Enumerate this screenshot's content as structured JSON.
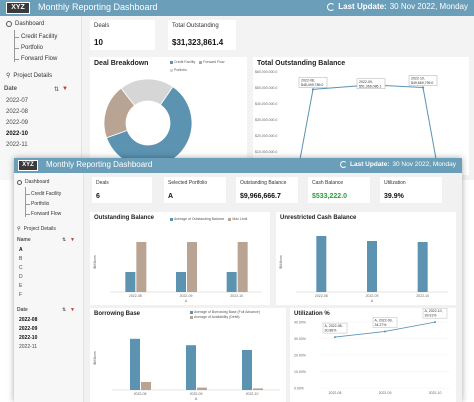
{
  "brand": {
    "logo_text": "XYZ",
    "header_color": "#6b9fb9"
  },
  "back_window": {
    "title": "Monthly Reporting Dashboard",
    "update_label": "Last Update:",
    "update_value": "30 Nov 2022, Monday",
    "nav": {
      "dashboard": "Dashboard",
      "items": [
        "Credit Facility",
        "Portfolio",
        "Forward Flow"
      ],
      "project_details": "Project Details"
    },
    "date_header": "Date",
    "dates": [
      "2022-07",
      "2022-08",
      "2022-09",
      "2022-10",
      "2022-11"
    ],
    "selected_date": "2022-10",
    "cards": {
      "deals_label": "Deals",
      "deals_value": "10",
      "outstanding_label": "Total Outstanding",
      "outstanding_value": "$31,323,861.4"
    },
    "deal_breakdown": {
      "title": "Deal Breakdown",
      "legend": [
        "Credit Facility",
        "Forward Flow",
        "Portfolio"
      ],
      "colors": [
        "#5b93b1",
        "#b9a493",
        "#d6d6d6"
      ]
    },
    "outstanding_balance": {
      "title": "Total Outstanding Balance",
      "y_ticks": [
        "$60,000,000.0",
        "$50,000,000.0",
        "$40,000,000.0",
        "$30,000,000.0",
        "$20,000,000.0",
        "$10,000,000.0"
      ],
      "callouts": [
        {
          "month": "2022-08,",
          "value": "$48,499,789.0"
        },
        {
          "month": "2022-09,",
          "value": "$51,366,086.1"
        },
        {
          "month": "2022-10,",
          "value": "$49,669,799.0"
        }
      ]
    }
  },
  "front_window": {
    "title": "Monthly Reporting Dashboard",
    "update_label": "Last Update:",
    "update_value": "30 Nov 2022, Monday",
    "nav": {
      "dashboard": "Dashboard",
      "items": [
        "Credit Facility",
        "Portfolio",
        "Forward Flow"
      ],
      "project_details": "Project Details"
    },
    "name_header": "Name",
    "names": [
      "A",
      "B",
      "C",
      "D",
      "E",
      "F"
    ],
    "selected_name": "A",
    "date_header": "Date",
    "dates": [
      "2022-08",
      "2022-09",
      "2022-10",
      "2022-11"
    ],
    "selected_dates": [
      "2022-08",
      "2022-09",
      "2022-10"
    ],
    "cards": [
      {
        "label": "Deals",
        "value": "6",
        "color": "#111111"
      },
      {
        "label": "Selected Portfolio",
        "value": "A",
        "color": "#111111"
      },
      {
        "label": "Outstanding Balance",
        "value": "$9,966,666.7",
        "color": "#111111"
      },
      {
        "label": "Cash Balance",
        "value": "$533,222.0",
        "color": "#2e9e3a"
      },
      {
        "label": "Utilization",
        "value": "39.9%",
        "color": "#111111"
      }
    ],
    "outstanding_panel": {
      "title": "Outstanding Balance",
      "legend": [
        "Average of Outstanding Balance",
        "Max Limit"
      ],
      "ylabel": "$Millions"
    },
    "cash_panel": {
      "title": "Unrestricted Cash Balance",
      "ylabel": "$Millions"
    },
    "borrowing_panel": {
      "title": "Borrowing Base",
      "legend": [
        "Average of Borrowing Base (Full Advance)",
        "Average of Availability (Debit)"
      ],
      "ylabel": "$Millions"
    },
    "utilization_panel": {
      "title": "Utilization %",
      "y_ticks": [
        "40.00%",
        "30.00%",
        "20.00%",
        "10.00%",
        "0.00%"
      ],
      "callouts": [
        {
          "month": "A, 2022-08,",
          "value": "30.86%"
        },
        {
          "month": "A, 2022-09,",
          "value": "34.27%"
        },
        {
          "month": "A, 2022-10,",
          "value": "39.91%"
        }
      ]
    },
    "colors": {
      "primary": "#5b93b1",
      "secondary": "#b9a493"
    }
  },
  "chart_data": [
    {
      "type": "pie",
      "title": "Deal Breakdown",
      "categories": [
        "Credit Facility",
        "Forward Flow",
        "Portfolio"
      ],
      "values": [
        60,
        20,
        20
      ]
    },
    {
      "type": "line",
      "title": "Total Outstanding Balance",
      "x": [
        "2022-08",
        "2022-09",
        "2022-10"
      ],
      "values": [
        48499789.0,
        51366086.1,
        49669799.0
      ],
      "ylim": [
        0,
        60000000
      ]
    },
    {
      "type": "bar",
      "title": "Outstanding Balance",
      "categories": [
        "2022-08",
        "2022-09",
        "2022-10"
      ],
      "ylabel": "$Millions",
      "series": [
        {
          "name": "Average of Outstanding Balance",
          "values": [
            10,
            10,
            10
          ]
        },
        {
          "name": "Max Limit",
          "values": [
            25,
            25,
            25
          ]
        }
      ],
      "ylim": [
        0,
        30
      ]
    },
    {
      "type": "bar",
      "title": "Unrestricted Cash Balance",
      "categories": [
        "2022-08",
        "2022-09",
        "2022-10"
      ],
      "ylabel": "$Millions",
      "values": [
        0.56,
        0.51,
        0.5
      ],
      "ylim": [
        0,
        0.6
      ]
    },
    {
      "type": "bar",
      "title": "Borrowing Base",
      "categories": [
        "2022-08",
        "2022-09",
        "2022-10"
      ],
      "ylabel": "$Millions",
      "series": [
        {
          "name": "Average of Borrowing Base (Full Advance)",
          "values": [
            32,
            28,
            25
          ]
        },
        {
          "name": "Average of Availability (Debit)",
          "values": [
            5,
            1.5,
            1
          ]
        }
      ],
      "ylim": [
        0,
        40
      ]
    },
    {
      "type": "line",
      "title": "Utilization %",
      "x": [
        "2022-08",
        "2022-09",
        "2022-10"
      ],
      "values": [
        30.86,
        34.27,
        39.91
      ],
      "ylim": [
        0,
        40
      ]
    }
  ]
}
